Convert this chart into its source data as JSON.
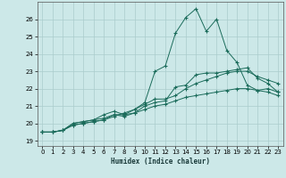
{
  "xlabel": "Humidex (Indice chaleur)",
  "xlim": [
    -0.5,
    23.5
  ],
  "ylim": [
    18.7,
    27.0
  ],
  "yticks": [
    19,
    20,
    21,
    22,
    23,
    24,
    25,
    26
  ],
  "xticks": [
    0,
    1,
    2,
    3,
    4,
    5,
    6,
    7,
    8,
    9,
    10,
    11,
    12,
    13,
    14,
    15,
    16,
    17,
    18,
    19,
    20,
    21,
    22,
    23
  ],
  "bg_color": "#cce8e8",
  "grid_color": "#aacccc",
  "line_color": "#1a6b5a",
  "line1_x": [
    0,
    1,
    2,
    3,
    4,
    5,
    6,
    7,
    8,
    9,
    10,
    11,
    12,
    13,
    14,
    15,
    16,
    17,
    18,
    19,
    20,
    21,
    22,
    23
  ],
  "line1_y": [
    19.5,
    19.5,
    19.6,
    20.0,
    20.1,
    20.2,
    20.3,
    20.5,
    20.5,
    20.6,
    21.0,
    21.2,
    21.3,
    22.1,
    22.2,
    22.8,
    22.9,
    22.9,
    23.0,
    23.1,
    23.2,
    22.6,
    22.3,
    21.8
  ],
  "line2_x": [
    0,
    1,
    2,
    3,
    4,
    5,
    6,
    7,
    8,
    9,
    10,
    11,
    12,
    13,
    14,
    15,
    16,
    17,
    18,
    19,
    20,
    21,
    22,
    23
  ],
  "line2_y": [
    19.5,
    19.5,
    19.6,
    20.0,
    20.1,
    20.2,
    20.5,
    20.7,
    20.5,
    20.8,
    21.1,
    21.4,
    21.4,
    21.6,
    22.0,
    22.3,
    22.5,
    22.7,
    22.9,
    23.0,
    23.0,
    22.7,
    22.5,
    22.3
  ],
  "line3_x": [
    0,
    1,
    2,
    3,
    4,
    5,
    6,
    7,
    8,
    9,
    10,
    11,
    12,
    13,
    14,
    15,
    16,
    17,
    18,
    19,
    20,
    21,
    22,
    23
  ],
  "line3_y": [
    19.5,
    19.5,
    19.6,
    19.9,
    20.0,
    20.1,
    20.2,
    20.5,
    20.4,
    20.6,
    20.8,
    21.0,
    21.1,
    21.3,
    21.5,
    21.6,
    21.7,
    21.8,
    21.9,
    22.0,
    22.0,
    21.9,
    21.8,
    21.6
  ],
  "line4_x": [
    0,
    1,
    2,
    3,
    4,
    5,
    6,
    7,
    8,
    9,
    10,
    11,
    12,
    13,
    14,
    15,
    16,
    17,
    18,
    19,
    20,
    21,
    22,
    23
  ],
  "line4_y": [
    19.5,
    19.5,
    19.6,
    19.9,
    20.0,
    20.1,
    20.2,
    20.4,
    20.6,
    20.8,
    21.2,
    23.0,
    23.3,
    25.2,
    26.1,
    26.6,
    25.3,
    26.0,
    24.2,
    23.5,
    22.2,
    21.9,
    22.0,
    21.8
  ]
}
